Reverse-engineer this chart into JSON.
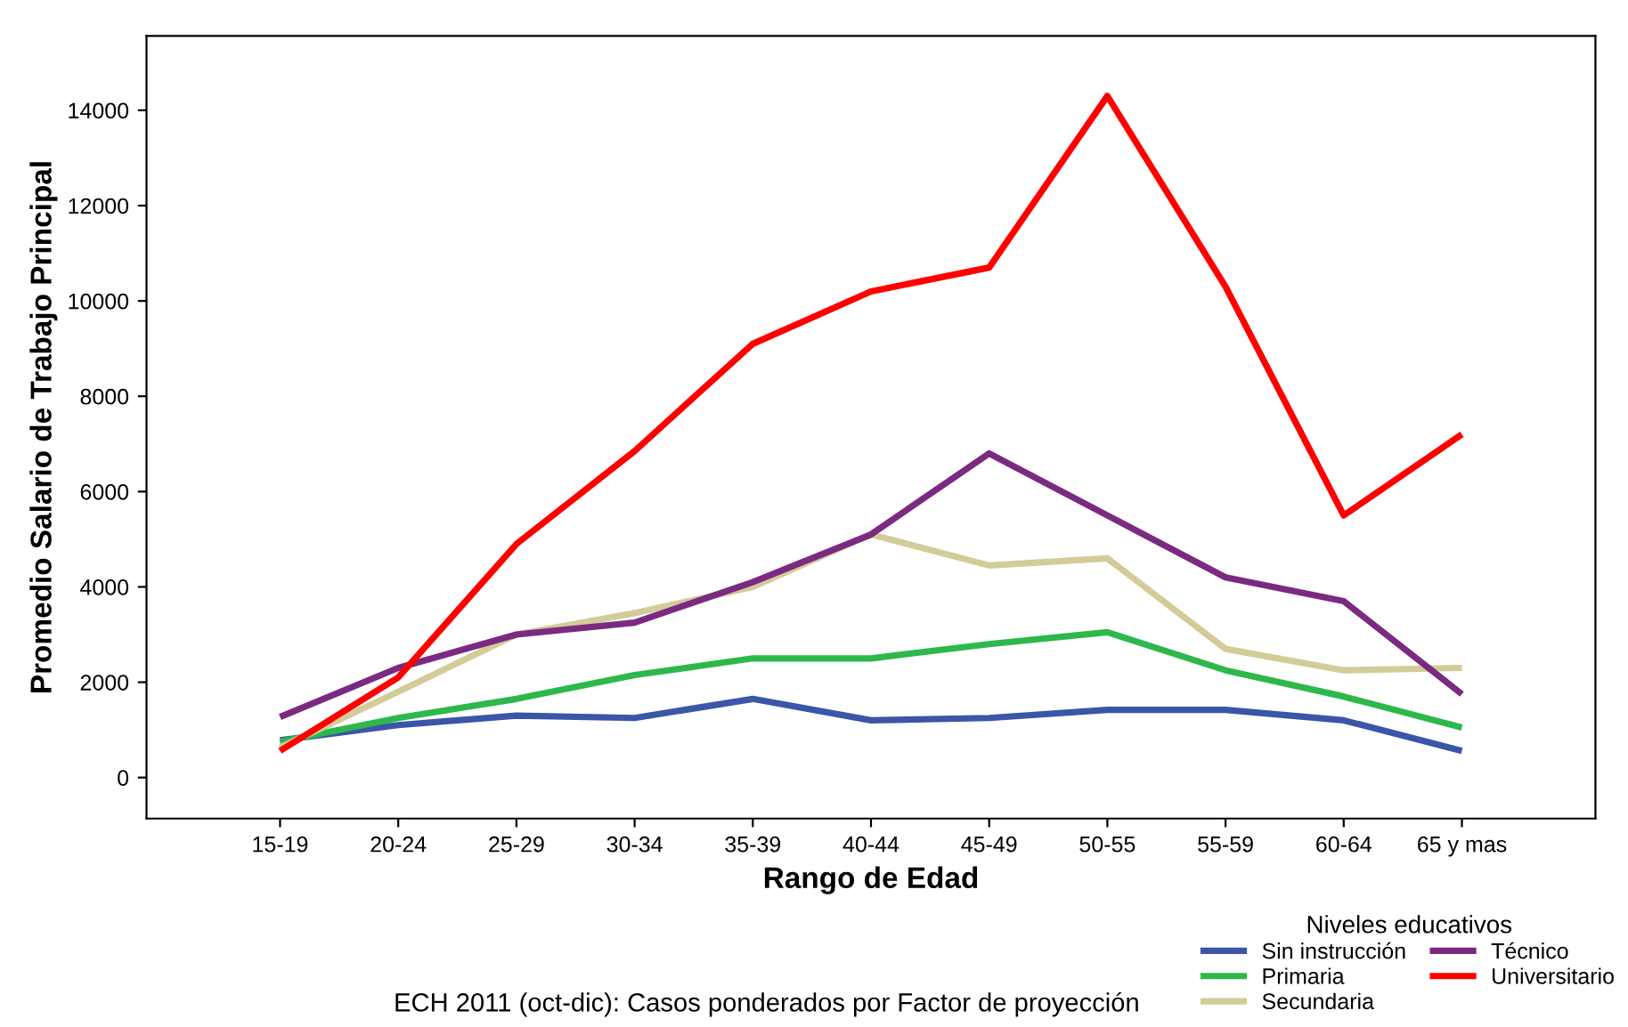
{
  "chart_data": {
    "type": "line",
    "xlabel": "Rango de Edad",
    "ylabel": "Promedio Salario de Trabajo Principal",
    "legend_title": "Niveles educativos",
    "categories": [
      "15-19",
      "20-24",
      "25-29",
      "30-34",
      "35-39",
      "40-44",
      "45-49",
      "50-55",
      "55-59",
      "60-64",
      "65 y mas"
    ],
    "series": [
      {
        "name": "Sin instrucción",
        "color": "#3b55a8",
        "values": [
          780,
          1100,
          1300,
          1250,
          1650,
          1200,
          1250,
          1420,
          1420,
          1200,
          560
        ]
      },
      {
        "name": "Primaria",
        "color": "#2db84b",
        "values": [
          750,
          1250,
          1650,
          2150,
          2500,
          2500,
          2800,
          3050,
          2250,
          1700,
          1050
        ]
      },
      {
        "name": "Secundaria",
        "color": "#d3cc98",
        "values": [
          630,
          1800,
          3000,
          3450,
          4000,
          5100,
          4450,
          4600,
          2700,
          2250,
          2300
        ]
      },
      {
        "name": "Técnico",
        "color": "#7b2a82",
        "values": [
          1270,
          2300,
          3000,
          3250,
          4100,
          5100,
          6800,
          5500,
          4200,
          3700,
          1750
        ]
      },
      {
        "name": "Universitario",
        "color": "#ff0000",
        "values": [
          560,
          2100,
          4900,
          6850,
          9100,
          10200,
          10700,
          14300,
          10300,
          5500,
          7200
        ]
      }
    ],
    "ylim": [
      -860,
      15560
    ],
    "yticks": [
      0,
      2000,
      4000,
      6000,
      8000,
      10000,
      12000,
      14000
    ],
    "grid": false,
    "legend": "bottom right",
    "marker": "none",
    "line_style": "solid",
    "annotations": [
      "ECH 2011 (oct-dic): Casos ponderados por Factor de proyección"
    ]
  }
}
